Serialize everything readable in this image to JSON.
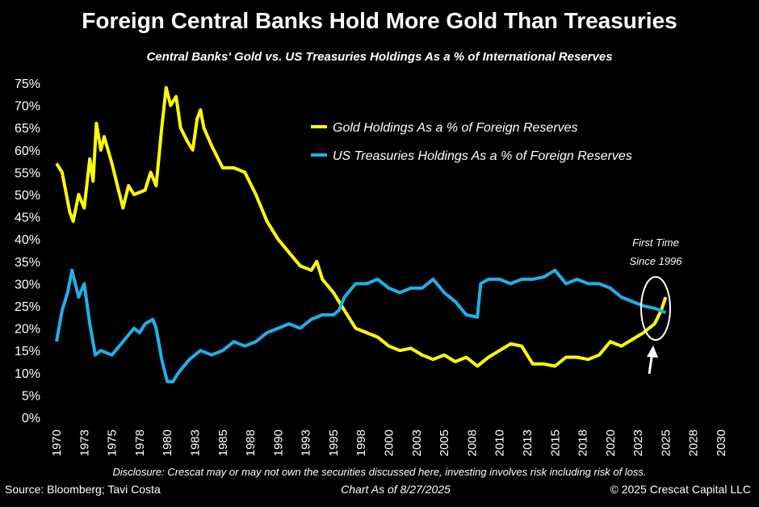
{
  "chart_data": {
    "type": "line",
    "title": "Foreign Central Banks Hold More Gold Than Treasuries",
    "subtitle": "Central Banks' Gold vs. US Treasuries Holdings As a % of International Reserves",
    "xlabel": "",
    "ylabel": "",
    "xlim": [
      1970,
      2030
    ],
    "ylim": [
      0,
      75
    ],
    "x_tick_labels": [
      "1970",
      "1973",
      "1975",
      "1978",
      "1980",
      "1983",
      "1985",
      "1988",
      "1990",
      "1993",
      "1995",
      "1998",
      "2000",
      "2003",
      "2005",
      "2008",
      "2010",
      "2013",
      "2015",
      "2018",
      "2020",
      "2023",
      "2025",
      "2028",
      "2030"
    ],
    "y_tick_labels": [
      "0%",
      "5%",
      "10%",
      "15%",
      "20%",
      "25%",
      "30%",
      "35%",
      "40%",
      "45%",
      "50%",
      "55%",
      "60%",
      "65%",
      "70%",
      "75%"
    ],
    "grid": false,
    "legend_position": "top-right",
    "series": [
      {
        "name": "Gold Holdings As a % of Foreign Reserves",
        "color": "#ffff00",
        "x": [
          1970,
          1970.5,
          1971.2,
          1971.5,
          1972,
          1972.5,
          1973,
          1973.3,
          1973.6,
          1974,
          1974.3,
          1975,
          1975.5,
          1976,
          1976.5,
          1977,
          1978,
          1978.5,
          1979,
          1979.5,
          1979.9,
          1980.3,
          1980.8,
          1981.2,
          1981.8,
          1982.3,
          1982.7,
          1983,
          1983.3,
          1984,
          1985,
          1986,
          1987,
          1988,
          1989,
          1990,
          1991,
          1992,
          1993,
          1993.5,
          1994,
          1995,
          1996,
          1997,
          1998,
          1999,
          2000,
          2001,
          2002,
          2003,
          2004,
          2005,
          2006,
          2007,
          2008,
          2009,
          2010,
          2011,
          2012,
          2013,
          2014,
          2015,
          2016,
          2017,
          2018,
          2019,
          2020,
          2021,
          2022,
          2023,
          2024,
          2024.6,
          2025
        ],
        "y": [
          57,
          55,
          46,
          44,
          50,
          47,
          58,
          53,
          66,
          60,
          63,
          57,
          52,
          47,
          52,
          50,
          51,
          55,
          52,
          65,
          74,
          70,
          72,
          65,
          62,
          60,
          67,
          69,
          65,
          61,
          56,
          56,
          55,
          50,
          44,
          40,
          37,
          34,
          33,
          35,
          31,
          28,
          24,
          20,
          19,
          18,
          16,
          15,
          15.5,
          14,
          13,
          14,
          12.5,
          13.5,
          11.5,
          13.5,
          15,
          16.5,
          16,
          12,
          12,
          11.5,
          13.5,
          13.5,
          13,
          14,
          17,
          16,
          17.5,
          19,
          21,
          24,
          27
        ]
      },
      {
        "name": "US Treasuries Holdings As a % of Foreign Reserves",
        "color": "#1fb0ea",
        "x": [
          1970,
          1970.5,
          1971,
          1971.4,
          1972,
          1972.5,
          1973,
          1973.5,
          1974,
          1975,
          1976,
          1977,
          1977.5,
          1978,
          1978.7,
          1979,
          1979.5,
          1980,
          1980.5,
          1981,
          1982,
          1983,
          1984,
          1985,
          1986,
          1987,
          1988,
          1989,
          1990,
          1991,
          1992,
          1993,
          1994,
          1995,
          1995.5,
          1996,
          1997,
          1998,
          1999,
          2000,
          2001,
          2002,
          2003,
          2004,
          2005,
          2006,
          2007,
          2008,
          2008.3,
          2009,
          2010,
          2011,
          2012,
          2013,
          2014,
          2015,
          2016,
          2017,
          2018,
          2019,
          2020,
          2021,
          2022,
          2023,
          2024,
          2025
        ],
        "y": [
          17,
          24,
          28,
          33,
          27,
          30,
          21,
          14,
          15,
          14,
          17,
          20,
          19,
          21,
          22,
          20,
          13,
          8,
          8,
          10,
          13,
          15,
          14,
          15,
          17,
          16,
          17,
          19,
          20,
          21,
          20,
          22,
          23,
          23,
          24,
          27,
          30,
          30,
          31,
          29,
          28,
          29,
          29,
          31,
          28,
          26,
          23,
          22.5,
          30,
          31,
          31,
          30,
          31,
          31,
          31.5,
          33,
          30,
          31,
          30,
          30,
          29,
          27,
          26,
          25,
          24.5,
          23.5
        ]
      }
    ],
    "annotations": [
      "First Time",
      "Since 1996"
    ]
  },
  "footer": {
    "disclosure": "Disclosure: Crescat may or may not own the securities discussed here, investing involves risk including risk of loss.",
    "source": "Source: Bloomberg; Tavi Costa",
    "chart_date": "Chart As of 8/27/2025",
    "copyright": "© 2025 Crescat Capital LLC"
  }
}
